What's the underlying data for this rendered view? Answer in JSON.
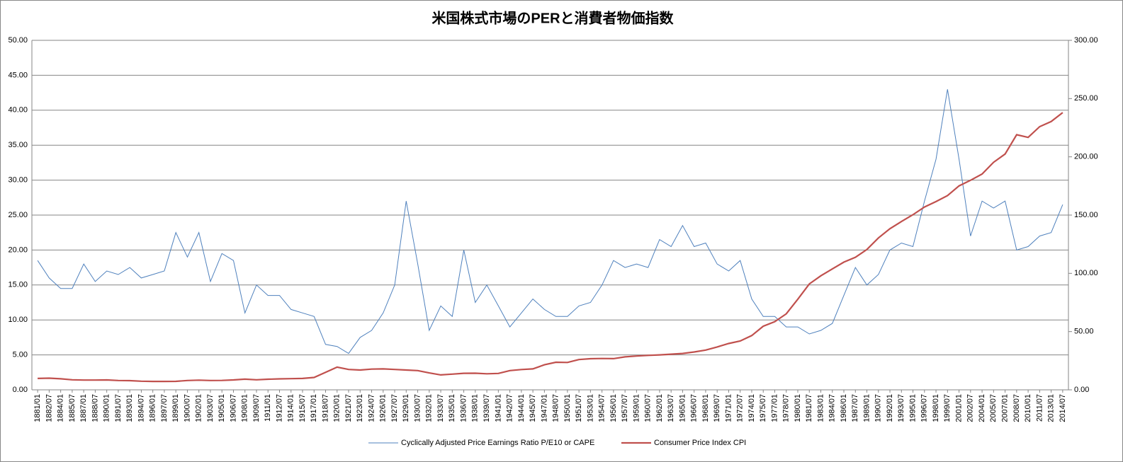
{
  "chart_data": {
    "type": "line",
    "title": "米国株式市場のPERと消費者物価指数",
    "categories": [
      "1881/01",
      "1882/07",
      "1884/01",
      "1885/07",
      "1887/01",
      "1888/07",
      "1890/01",
      "1891/07",
      "1893/01",
      "1894/07",
      "1896/01",
      "1897/07",
      "1899/01",
      "1900/07",
      "1902/01",
      "1903/07",
      "1905/01",
      "1906/07",
      "1908/01",
      "1909/07",
      "1911/01",
      "1912/07",
      "1914/01",
      "1915/07",
      "1917/01",
      "1918/07",
      "1920/01",
      "1921/07",
      "1923/01",
      "1924/07",
      "1926/01",
      "1927/07",
      "1929/01",
      "1930/07",
      "1932/01",
      "1933/07",
      "1935/01",
      "1936/07",
      "1938/01",
      "1939/07",
      "1941/01",
      "1942/07",
      "1944/01",
      "1945/07",
      "1947/01",
      "1948/07",
      "1950/01",
      "1951/07",
      "1953/01",
      "1954/07",
      "1956/01",
      "1957/07",
      "1959/01",
      "1960/07",
      "1962/01",
      "1963/07",
      "1965/01",
      "1966/07",
      "1968/01",
      "1969/07",
      "1971/01",
      "1972/07",
      "1974/01",
      "1975/07",
      "1977/01",
      "1978/07",
      "1980/01",
      "1981/07",
      "1983/01",
      "1984/07",
      "1986/01",
      "1987/07",
      "1989/01",
      "1990/07",
      "1992/01",
      "1993/07",
      "1995/01",
      "1996/07",
      "1998/01",
      "1999/07",
      "2001/01",
      "2002/07",
      "2004/01",
      "2005/07",
      "2007/01",
      "2008/07",
      "2010/01",
      "2011/07",
      "2013/01",
      "2014/07"
    ],
    "series": [
      {
        "name": "Cyclically Adjusted Price Earnings Ratio P/E10 or CAPE",
        "color": "#4f81bd",
        "axis": "y",
        "values": [
          18.5,
          16,
          14.5,
          14.5,
          18,
          15.5,
          17,
          16.5,
          17.5,
          16,
          16.5,
          17,
          22.5,
          19,
          22.5,
          15.5,
          19.5,
          18.5,
          11,
          15,
          13.5,
          13.5,
          11.5,
          11,
          10.5,
          6.5,
          6.2,
          5.2,
          7.5,
          8.5,
          11,
          15,
          27,
          18,
          8.5,
          12,
          10.5,
          20,
          12.5,
          15,
          12,
          9,
          11,
          13,
          11.5,
          10.5,
          10.5,
          12,
          12.5,
          15,
          18.5,
          17.5,
          18,
          17.5,
          21.5,
          20.5,
          23.5,
          20.5,
          21,
          18,
          17,
          18.5,
          13,
          10.5,
          10.5,
          9,
          9,
          8,
          8.5,
          9.5,
          13.5,
          17.5,
          15,
          16.5,
          20,
          21,
          20.5,
          27,
          33,
          43,
          33,
          22,
          27,
          26,
          27,
          20,
          20.5,
          22,
          22.5,
          26.5
        ]
      },
      {
        "name": "Consumer Price Index CPI",
        "color": "#c0504d",
        "axis": "y2",
        "values": [
          9.8,
          10,
          9.5,
          8.6,
          8.4,
          8.4,
          8.5,
          8,
          7.9,
          7.4,
          7.2,
          7.2,
          7.3,
          8,
          8.3,
          8,
          8.1,
          8.5,
          9.2,
          8.6,
          9.1,
          9.4,
          9.6,
          9.8,
          10.6,
          15,
          19.5,
          17.5,
          17,
          17.8,
          18,
          17.5,
          17,
          16.5,
          14.5,
          12.8,
          13.5,
          14.2,
          14.3,
          13.8,
          14.1,
          16.5,
          17.4,
          18,
          21.5,
          23.7,
          23.5,
          26,
          26.7,
          26.9,
          26.8,
          28.3,
          29,
          29.6,
          30,
          30.6,
          31.2,
          32.5,
          34.1,
          36.8,
          39.8,
          41.9,
          46.6,
          54.6,
          58.5,
          65.2,
          77.8,
          90.9,
          97.9,
          103.8,
          109.6,
          113.8,
          120.5,
          130.4,
          138.3,
          144.5,
          150.3,
          156.9,
          161.6,
          166.7,
          175.1,
          179.9,
          185.2,
          195.3,
          202.4,
          219,
          216.7,
          225.9,
          230.3,
          238
        ]
      }
    ],
    "ylim": [
      0,
      50
    ],
    "yticks": [
      {
        "value": 0,
        "label": "0.00"
      },
      {
        "value": 5,
        "label": "5.00"
      },
      {
        "value": 10,
        "label": "10.00"
      },
      {
        "value": 15,
        "label": "15.00"
      },
      {
        "value": 20,
        "label": "20.00"
      },
      {
        "value": 25,
        "label": "25.00"
      },
      {
        "value": 30,
        "label": "30.00"
      },
      {
        "value": 35,
        "label": "35.00"
      },
      {
        "value": 40,
        "label": "40.00"
      },
      {
        "value": 45,
        "label": "45.00"
      },
      {
        "value": 50,
        "label": "50.00"
      }
    ],
    "y2lim": [
      0,
      300
    ],
    "y2ticks": [
      {
        "value": 0,
        "label": "0.00"
      },
      {
        "value": 50,
        "label": "50.00"
      },
      {
        "value": 100,
        "label": "100.00"
      },
      {
        "value": 150,
        "label": "150.00"
      },
      {
        "value": 200,
        "label": "200.00"
      },
      {
        "value": 250,
        "label": "250.00"
      },
      {
        "value": 300,
        "label": "300.00"
      }
    ],
    "grid": true,
    "legend": "bottom"
  }
}
